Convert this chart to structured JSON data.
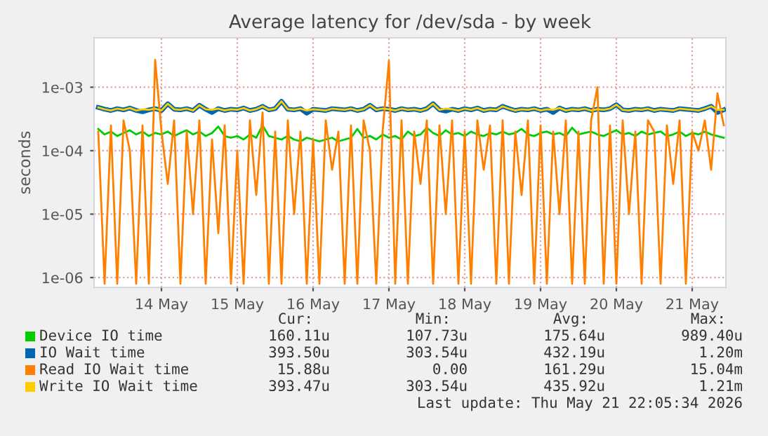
{
  "chart_data": {
    "type": "line",
    "title": "Average latency for /dev/sda - by week",
    "ylabel": "seconds",
    "log": "y",
    "ylim": [
      7e-07,
      0.006
    ],
    "yticks": [
      {
        "value": 1e-06,
        "label": "1e-06"
      },
      {
        "value": 1e-05,
        "label": "1e-05"
      },
      {
        "value": 0.0001,
        "label": "1e-04"
      },
      {
        "value": 0.001,
        "label": "1e-03"
      }
    ],
    "xlim": [
      "2026-05-13T14:40",
      "2026-05-21T22:40"
    ],
    "xticks": [
      {
        "value": "2026-05-14T12:00",
        "label": "14 May"
      },
      {
        "value": "2026-05-15T12:00",
        "label": "15 May"
      },
      {
        "value": "2026-05-16T12:00",
        "label": "16 May"
      },
      {
        "value": "2026-05-17T12:00",
        "label": "17 May"
      },
      {
        "value": "2026-05-18T12:00",
        "label": "18 May"
      },
      {
        "value": "2026-05-19T12:00",
        "label": "19 May"
      },
      {
        "value": "2026-05-20T12:00",
        "label": "20 May"
      },
      {
        "value": "2026-05-21T12:00",
        "label": "21 May"
      }
    ],
    "grid": true,
    "legend": "bottom",
    "x": [
      "2026-05-13T16:00",
      "2026-05-13T18:00",
      "2026-05-13T20:00",
      "2026-05-13T22:00",
      "2026-05-14T00:00",
      "2026-05-14T02:00",
      "2026-05-14T04:00",
      "2026-05-14T06:00",
      "2026-05-14T08:00",
      "2026-05-14T10:00",
      "2026-05-14T12:00",
      "2026-05-14T14:00",
      "2026-05-14T16:00",
      "2026-05-14T18:00",
      "2026-05-14T20:00",
      "2026-05-14T22:00",
      "2026-05-15T00:00",
      "2026-05-15T02:00",
      "2026-05-15T04:00",
      "2026-05-15T06:00",
      "2026-05-15T08:00",
      "2026-05-15T10:00",
      "2026-05-15T12:00",
      "2026-05-15T14:00",
      "2026-05-15T16:00",
      "2026-05-15T18:00",
      "2026-05-15T20:00",
      "2026-05-15T22:00",
      "2026-05-16T00:00",
      "2026-05-16T02:00",
      "2026-05-16T04:00",
      "2026-05-16T06:00",
      "2026-05-16T08:00",
      "2026-05-16T10:00",
      "2026-05-16T12:00",
      "2026-05-16T14:00",
      "2026-05-16T16:00",
      "2026-05-16T18:00",
      "2026-05-16T20:00",
      "2026-05-16T22:00",
      "2026-05-17T00:00",
      "2026-05-17T02:00",
      "2026-05-17T04:00",
      "2026-05-17T06:00",
      "2026-05-17T08:00",
      "2026-05-17T10:00",
      "2026-05-17T12:00",
      "2026-05-17T14:00",
      "2026-05-17T16:00",
      "2026-05-17T18:00",
      "2026-05-17T20:00",
      "2026-05-17T22:00",
      "2026-05-18T00:00",
      "2026-05-18T02:00",
      "2026-05-18T04:00",
      "2026-05-18T06:00",
      "2026-05-18T08:00",
      "2026-05-18T10:00",
      "2026-05-18T12:00",
      "2026-05-18T14:00",
      "2026-05-18T16:00",
      "2026-05-18T18:00",
      "2026-05-18T20:00",
      "2026-05-18T22:00",
      "2026-05-19T00:00",
      "2026-05-19T02:00",
      "2026-05-19T04:00",
      "2026-05-19T06:00",
      "2026-05-19T08:00",
      "2026-05-19T10:00",
      "2026-05-19T12:00",
      "2026-05-19T14:00",
      "2026-05-19T16:00",
      "2026-05-19T18:00",
      "2026-05-19T20:00",
      "2026-05-19T22:00",
      "2026-05-20T00:00",
      "2026-05-20T02:00",
      "2026-05-20T04:00",
      "2026-05-20T06:00",
      "2026-05-20T08:00",
      "2026-05-20T10:00",
      "2026-05-20T12:00",
      "2026-05-20T14:00",
      "2026-05-20T16:00",
      "2026-05-20T18:00",
      "2026-05-20T20:00",
      "2026-05-20T22:00",
      "2026-05-21T00:00",
      "2026-05-21T02:00",
      "2026-05-21T04:00",
      "2026-05-21T06:00",
      "2026-05-21T08:00",
      "2026-05-21T10:00",
      "2026-05-21T12:00",
      "2026-05-21T14:00",
      "2026-05-21T16:00",
      "2026-05-21T18:00",
      "2026-05-21T20:00",
      "2026-05-21T22:00"
    ],
    "series": [
      {
        "name": "Device IO time",
        "color": "#00cc00",
        "values": [
          0.00022,
          0.00018,
          0.0002,
          0.00017,
          0.00019,
          0.00021,
          0.00018,
          0.0002,
          0.00017,
          0.00019,
          0.00018,
          0.0002,
          0.00017,
          0.00019,
          0.00021,
          0.00018,
          0.0002,
          0.00017,
          0.00019,
          0.00024,
          0.00017,
          0.00016,
          0.00017,
          0.00015,
          0.00018,
          0.00016,
          0.00025,
          0.00017,
          0.00016,
          0.00015,
          0.00017,
          0.00015,
          0.00014,
          0.00016,
          0.00015,
          0.00014,
          0.00015,
          0.00016,
          0.00014,
          0.00015,
          0.00016,
          0.00022,
          0.00016,
          0.00017,
          0.00015,
          0.00018,
          0.00016,
          0.00017,
          0.00015,
          0.0002,
          0.00017,
          0.00018,
          0.00023,
          0.00019,
          0.00017,
          0.00021,
          0.00018,
          0.00019,
          0.00017,
          0.0002,
          0.00018,
          0.00017,
          0.00019,
          0.00018,
          0.0002,
          0.00018,
          0.00019,
          0.00022,
          0.00018,
          0.00017,
          0.00019,
          0.0002,
          0.00018,
          0.00019,
          0.00017,
          0.00023,
          0.00018,
          0.00019,
          0.0002,
          0.00018,
          0.00017,
          0.00019,
          0.00021,
          0.00018,
          0.00019,
          0.00017,
          0.0002,
          0.00018,
          0.00019,
          0.0002,
          0.00017,
          0.00018,
          0.0002,
          0.00017,
          0.00019,
          0.00018,
          0.0002,
          0.00018,
          0.00017,
          0.00016
        ]
      },
      {
        "name": "IO Wait time",
        "color": "#0066b3",
        "values": [
          0.00048,
          0.00045,
          0.00043,
          0.00046,
          0.00044,
          0.00047,
          0.00043,
          0.00041,
          0.00044,
          0.00046,
          0.00043,
          0.00055,
          0.00045,
          0.00044,
          0.00046,
          0.00043,
          0.00052,
          0.00045,
          0.0004,
          0.00046,
          0.00043,
          0.00045,
          0.00044,
          0.00047,
          0.00043,
          0.00045,
          0.0005,
          0.00044,
          0.00046,
          0.0006,
          0.00045,
          0.00044,
          0.00046,
          0.00039,
          0.00045,
          0.00044,
          0.00043,
          0.00046,
          0.00045,
          0.00044,
          0.00046,
          0.00043,
          0.00045,
          0.00052,
          0.00044,
          0.00046,
          0.00045,
          0.00043,
          0.00046,
          0.00044,
          0.00045,
          0.00043,
          0.00046,
          0.00055,
          0.00044,
          0.00042,
          0.00045,
          0.00043,
          0.00046,
          0.00044,
          0.00047,
          0.00043,
          0.00045,
          0.00044,
          0.0005,
          0.00046,
          0.00043,
          0.00045,
          0.00044,
          0.00046,
          0.00043,
          0.00045,
          0.0004,
          0.00047,
          0.00043,
          0.00045,
          0.00044,
          0.00046,
          0.00043,
          0.00045,
          0.00044,
          0.00046,
          0.00053,
          0.00044,
          0.00043,
          0.00045,
          0.00044,
          0.00046,
          0.00043,
          0.00045,
          0.00044,
          0.00043,
          0.00046,
          0.00045,
          0.00044,
          0.00043,
          0.00046,
          0.0005,
          0.0004,
          0.00044
        ]
      },
      {
        "name": "Read IO Wait time",
        "color": "#ff8000",
        "values": [
          0.0002,
          8e-07,
          0.00025,
          8e-07,
          0.0003,
          0.0001,
          8e-07,
          0.00025,
          8e-07,
          0.0027,
          0.0002,
          3e-05,
          0.0003,
          8e-07,
          0.0002,
          1e-05,
          0.0003,
          8e-07,
          0.00015,
          5e-06,
          0.00025,
          8e-07,
          0.0001,
          8e-07,
          0.0003,
          2e-05,
          0.0004,
          8e-07,
          0.0002,
          8e-07,
          0.0003,
          1e-05,
          0.0002,
          8e-07,
          0.00015,
          8e-07,
          0.0003,
          5e-05,
          0.0002,
          8e-07,
          0.00025,
          8e-07,
          0.0003,
          0.0001,
          8e-07,
          0.0002,
          0.0026,
          8e-07,
          0.0003,
          8e-07,
          0.0002,
          3e-05,
          0.0003,
          8e-07,
          0.00025,
          1e-05,
          0.0003,
          8e-07,
          0.0002,
          8e-07,
          0.0003,
          5e-05,
          0.00025,
          8e-07,
          0.0003,
          8e-07,
          0.0002,
          2e-05,
          0.0003,
          8e-07,
          0.00025,
          8e-07,
          0.0002,
          1e-05,
          0.0003,
          8e-07,
          0.0002,
          8e-07,
          0.0003,
          0.001,
          8e-07,
          0.00025,
          8e-07,
          0.0003,
          1e-05,
          0.0002,
          8e-07,
          0.0003,
          0.0002,
          8e-07,
          0.00025,
          3e-05,
          0.0003,
          8e-07,
          0.0002,
          0.0001,
          0.0003,
          5e-05,
          0.0008,
          0.00025
        ]
      },
      {
        "name": "Write IO Wait time",
        "color": "#ffcc00",
        "values": [
          0.00048,
          0.00045,
          0.00043,
          0.00046,
          0.00044,
          0.00047,
          0.00043,
          0.00045,
          0.00044,
          0.00046,
          0.00043,
          0.00055,
          0.00045,
          0.00044,
          0.00046,
          0.00043,
          0.00052,
          0.00045,
          0.00044,
          0.00046,
          0.00043,
          0.00045,
          0.00044,
          0.00047,
          0.00043,
          0.00045,
          0.0005,
          0.00044,
          0.00046,
          0.0006,
          0.00045,
          0.00044,
          0.00046,
          0.00043,
          0.00045,
          0.00044,
          0.00043,
          0.00046,
          0.00045,
          0.00044,
          0.00046,
          0.00043,
          0.00045,
          0.00052,
          0.00044,
          0.00046,
          0.00045,
          0.00043,
          0.00046,
          0.00044,
          0.00045,
          0.00043,
          0.00046,
          0.00055,
          0.00044,
          0.00046,
          0.00045,
          0.00043,
          0.00046,
          0.00044,
          0.00047,
          0.00043,
          0.00045,
          0.00044,
          0.0005,
          0.00046,
          0.00043,
          0.00045,
          0.00044,
          0.00046,
          0.00043,
          0.00045,
          0.00044,
          0.00047,
          0.00043,
          0.00045,
          0.00044,
          0.00046,
          0.00043,
          0.00045,
          0.00044,
          0.00046,
          0.00053,
          0.00044,
          0.00043,
          0.00045,
          0.00044,
          0.00046,
          0.00043,
          0.00045,
          0.00044,
          0.00043,
          0.00046,
          0.00045,
          0.00044,
          0.00043,
          0.00046,
          0.0005,
          0.00044,
          0.00044
        ]
      }
    ],
    "annotations": [
      "Cur:",
      "Min:",
      "Avg:",
      "Max:",
      "160.11u",
      "107.73u",
      "175.64u",
      "989.40u",
      "393.50u",
      "303.54u",
      "432.19u",
      "1.20m",
      "15.88u",
      "0.00",
      "161.29u",
      "15.04m",
      "393.47u",
      "303.54u",
      "435.92u",
      "1.21m",
      "Last update: Thu May 21 22:05:34 2026"
    ]
  }
}
